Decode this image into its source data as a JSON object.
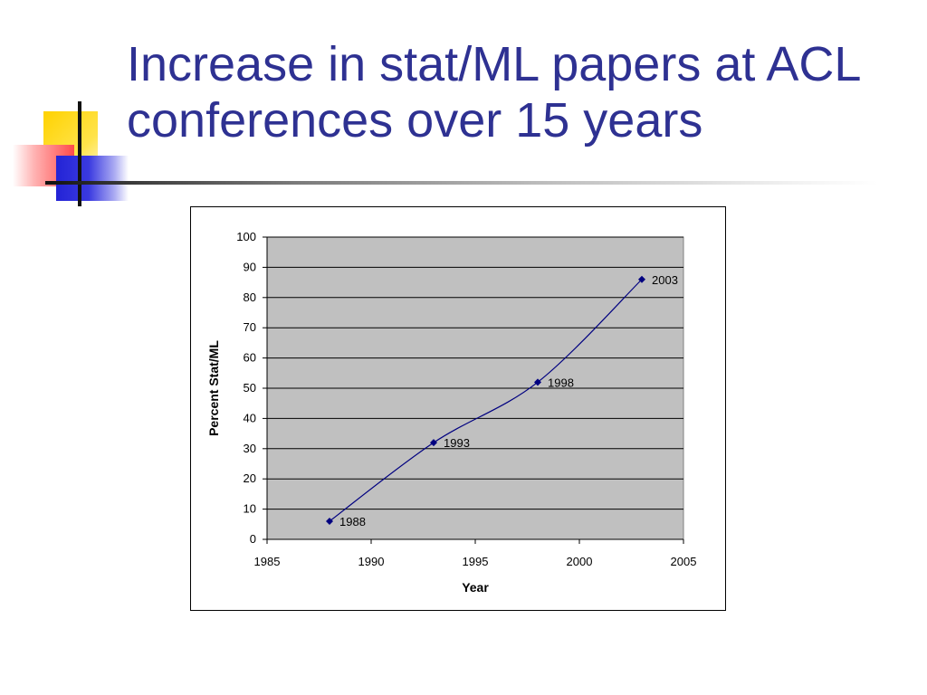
{
  "title": "Increase in stat/ML papers at ACL conferences over 15 years",
  "colors": {
    "title": "#2e3192",
    "plot_bg": "#c0c0c0",
    "series": "#000080",
    "gridline": "#000000"
  },
  "chart_data": {
    "type": "scatter",
    "title": "",
    "xlabel": "Year",
    "ylabel": "Percent Stat/ML",
    "xlim": [
      1985,
      2005
    ],
    "ylim": [
      0,
      100
    ],
    "xticks": [
      1985,
      1990,
      1995,
      2000,
      2005
    ],
    "yticks": [
      0,
      10,
      20,
      30,
      40,
      50,
      60,
      70,
      80,
      90,
      100
    ],
    "grid": true,
    "legend": "none",
    "smoothed_line": true,
    "series": [
      {
        "x": [
          1988,
          1993,
          1998,
          2003
        ],
        "y": [
          6,
          32,
          52,
          86
        ],
        "point_labels": [
          "1988",
          "1993",
          "1998",
          "2003"
        ]
      }
    ]
  }
}
